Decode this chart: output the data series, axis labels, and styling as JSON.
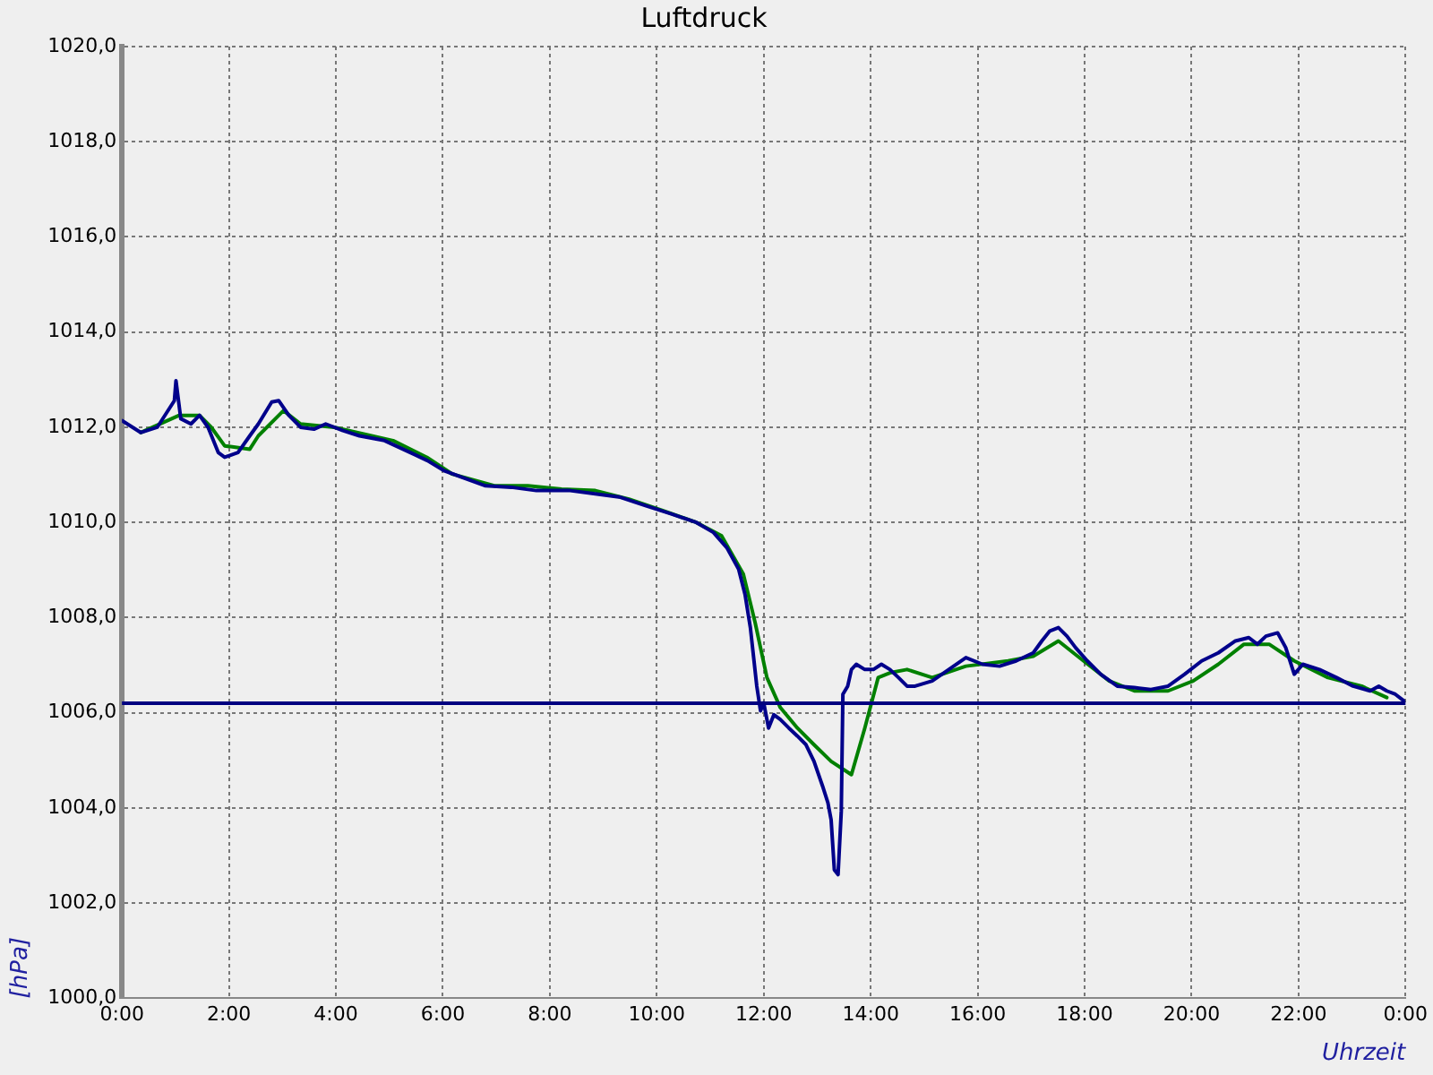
{
  "chart_data": {
    "type": "line",
    "title": "Luftdruck",
    "xlabel": "Uhrzeit",
    "ylabel": "[hPa]",
    "xlim": [
      0,
      24
    ],
    "ylim": [
      1000,
      1020
    ],
    "xticks": [
      {
        "value": 0,
        "label": "0:00"
      },
      {
        "value": 2,
        "label": "2:00"
      },
      {
        "value": 4,
        "label": "4:00"
      },
      {
        "value": 6,
        "label": "6:00"
      },
      {
        "value": 8,
        "label": "8:00"
      },
      {
        "value": 10,
        "label": "10:00"
      },
      {
        "value": 12,
        "label": "12:00"
      },
      {
        "value": 14,
        "label": "14:00"
      },
      {
        "value": 16,
        "label": "16:00"
      },
      {
        "value": 18,
        "label": "18:00"
      },
      {
        "value": 20,
        "label": "20:00"
      },
      {
        "value": 22,
        "label": "22:00"
      },
      {
        "value": 24,
        "label": "0:00"
      }
    ],
    "yticks": [
      {
        "value": 1000,
        "label": "1000,0"
      },
      {
        "value": 1002,
        "label": "1002,0"
      },
      {
        "value": 1004,
        "label": "1004,0"
      },
      {
        "value": 1006,
        "label": "1006,0"
      },
      {
        "value": 1008,
        "label": "1008,0"
      },
      {
        "value": 1010,
        "label": "1010,0"
      },
      {
        "value": 1012,
        "label": "1012,0"
      },
      {
        "value": 1014,
        "label": "1014,0"
      },
      {
        "value": 1016,
        "label": "1016,0"
      },
      {
        "value": 1018,
        "label": "1018,0"
      },
      {
        "value": 1020,
        "label": "1020,0"
      }
    ],
    "grid": true,
    "marker": "none",
    "line_style": "solid",
    "ref_lines": [
      {
        "axis": "y",
        "value": 1006.2,
        "color": "#000080"
      }
    ],
    "series": [
      {
        "color": "#00008b",
        "x": [
          0,
          0.35,
          0.66,
          0.98,
          1.01,
          1.1,
          1.29,
          1.45,
          1.61,
          1.8,
          1.92,
          2.17,
          2.39,
          2.55,
          2.8,
          2.93,
          3.12,
          3.34,
          3.59,
          3.81,
          4.13,
          4.44,
          4.91,
          5.39,
          5.71,
          6.02,
          6.35,
          6.8,
          7.28,
          7.75,
          8.06,
          8.38,
          8.85,
          9.32,
          9.8,
          10.27,
          10.74,
          11.06,
          11.31,
          11.53,
          11.65,
          11.75,
          11.87,
          11.94,
          12,
          12.09,
          12.19,
          12.31,
          12.47,
          12.63,
          12.79,
          12.94,
          13.1,
          13.2,
          13.26,
          13.32,
          13.39,
          13.45,
          13.48,
          13.57,
          13.64,
          13.73,
          13.89,
          14.05,
          14.2,
          14.36,
          14.52,
          14.68,
          14.83,
          15.15,
          15.46,
          15.78,
          16.09,
          16.41,
          16.72,
          17.04,
          17.2,
          17.35,
          17.51,
          17.67,
          17.83,
          18.05,
          18.3,
          18.61,
          18.93,
          19.24,
          19.56,
          19.87,
          20.19,
          20.5,
          20.82,
          21.07,
          21.23,
          21.39,
          21.61,
          21.76,
          21.92,
          22.08,
          22.39,
          22.71,
          23.02,
          23.34,
          23.5,
          23.65,
          23.81,
          23.97
        ],
        "values": [
          1012.14,
          1011.89,
          1012,
          1012.56,
          1012.98,
          1012.18,
          1012.07,
          1012.25,
          1012,
          1011.47,
          1011.37,
          1011.47,
          1011.82,
          1012.07,
          1012.53,
          1012.56,
          1012.25,
          1012,
          1011.96,
          1012.07,
          1011.93,
          1011.82,
          1011.72,
          1011.47,
          1011.3,
          1011.09,
          1010.95,
          1010.77,
          1010.74,
          1010.67,
          1010.67,
          1010.67,
          1010.6,
          1010.53,
          1010.35,
          1010.18,
          1010,
          1009.79,
          1009.47,
          1009.02,
          1008.49,
          1007.79,
          1006.56,
          1006.04,
          1006.21,
          1005.68,
          1005.96,
          1005.86,
          1005.68,
          1005.51,
          1005.33,
          1004.98,
          1004.46,
          1004.11,
          1003.75,
          1002.7,
          1002.6,
          1003.93,
          1006.39,
          1006.56,
          1006.91,
          1007.02,
          1006.91,
          1006.91,
          1007.02,
          1006.91,
          1006.74,
          1006.56,
          1006.56,
          1006.67,
          1006.91,
          1007.16,
          1007.02,
          1006.98,
          1007.09,
          1007.26,
          1007.51,
          1007.72,
          1007.79,
          1007.61,
          1007.37,
          1007.09,
          1006.81,
          1006.56,
          1006.53,
          1006.49,
          1006.56,
          1006.81,
          1007.09,
          1007.26,
          1007.51,
          1007.58,
          1007.44,
          1007.61,
          1007.68,
          1007.37,
          1006.81,
          1007.02,
          1006.91,
          1006.74,
          1006.56,
          1006.46,
          1006.56,
          1006.46,
          1006.39,
          1006.25
        ]
      },
      {
        "color": "#008000",
        "x": [
          0.35,
          1.07,
          1.45,
          1.67,
          1.92,
          2.39,
          2.55,
          3.02,
          3.34,
          3.97,
          5.07,
          5.7,
          6.17,
          6.96,
          7.59,
          8.22,
          8.85,
          9.48,
          10.11,
          10.74,
          11.21,
          11.62,
          11.84,
          12.06,
          12.31,
          12.63,
          12.94,
          13.26,
          13.64,
          13.89,
          14.14,
          14.36,
          14.68,
          15.15,
          15.78,
          16.57,
          17.04,
          17.51,
          17.98,
          18.46,
          18.93,
          19.56,
          20.03,
          20.5,
          20.98,
          21.45,
          21.92,
          22.55,
          23.18,
          23.65
        ],
        "values": [
          1011.89,
          1012.25,
          1012.25,
          1012,
          1011.61,
          1011.54,
          1011.82,
          1012.35,
          1012.07,
          1012,
          1011.72,
          1011.37,
          1011.02,
          1010.77,
          1010.77,
          1010.7,
          1010.67,
          1010.49,
          1010.25,
          1010,
          1009.72,
          1008.91,
          1007.89,
          1006.74,
          1006.11,
          1005.68,
          1005.33,
          1004.98,
          1004.7,
          1005.68,
          1006.74,
          1006.84,
          1006.91,
          1006.74,
          1006.98,
          1007.09,
          1007.19,
          1007.51,
          1007.09,
          1006.67,
          1006.46,
          1006.46,
          1006.67,
          1007.02,
          1007.44,
          1007.44,
          1007.09,
          1006.74,
          1006.56,
          1006.32
        ]
      }
    ]
  }
}
